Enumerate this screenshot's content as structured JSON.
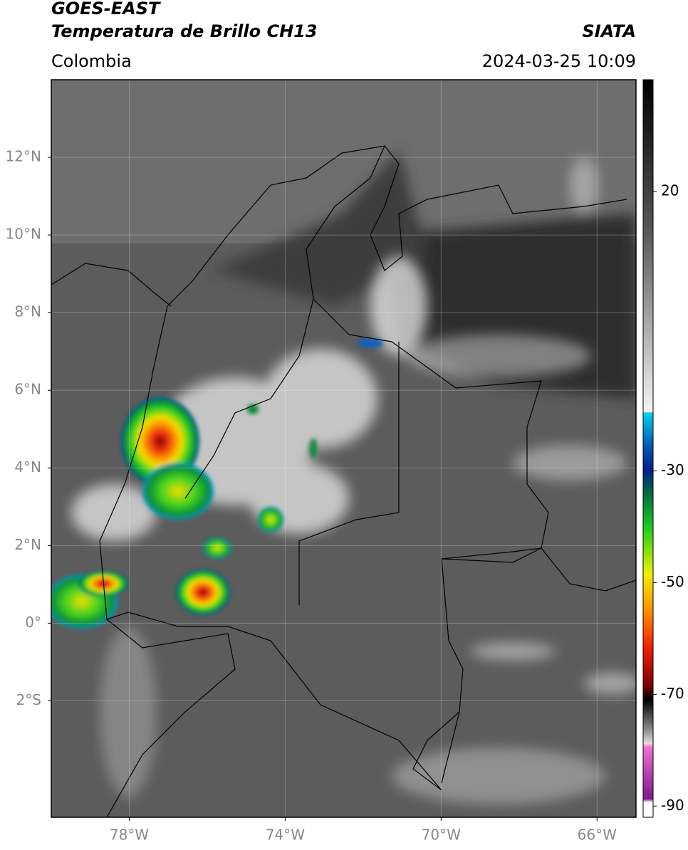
{
  "header": {
    "title": "GOES-EAST",
    "subtitle": "Temperatura de Brillo CH13",
    "source": "SIATA",
    "region": "Colombia",
    "datetime": "2024-03-25 10:09"
  },
  "map": {
    "xlim": [
      -80,
      -65
    ],
    "ylim": [
      -5,
      14
    ],
    "xticks": [
      {
        "value": -78,
        "label": "78°W"
      },
      {
        "value": -74,
        "label": "74°W"
      },
      {
        "value": -70,
        "label": "70°W"
      },
      {
        "value": -66,
        "label": "66°W"
      }
    ],
    "yticks": [
      {
        "value": 12,
        "label": "12°N"
      },
      {
        "value": 10,
        "label": "10°N"
      },
      {
        "value": 8,
        "label": "8°N"
      },
      {
        "value": 6,
        "label": "6°N"
      },
      {
        "value": 4,
        "label": "4°N"
      },
      {
        "value": 2,
        "label": "2°N"
      },
      {
        "value": 0,
        "label": "0°"
      },
      {
        "value": -2,
        "label": "2°S"
      }
    ],
    "grid": true
  },
  "colorbar": {
    "lim": [
      -92,
      40
    ],
    "ticks": [
      20,
      -30,
      -50,
      -70,
      -90
    ]
  }
}
